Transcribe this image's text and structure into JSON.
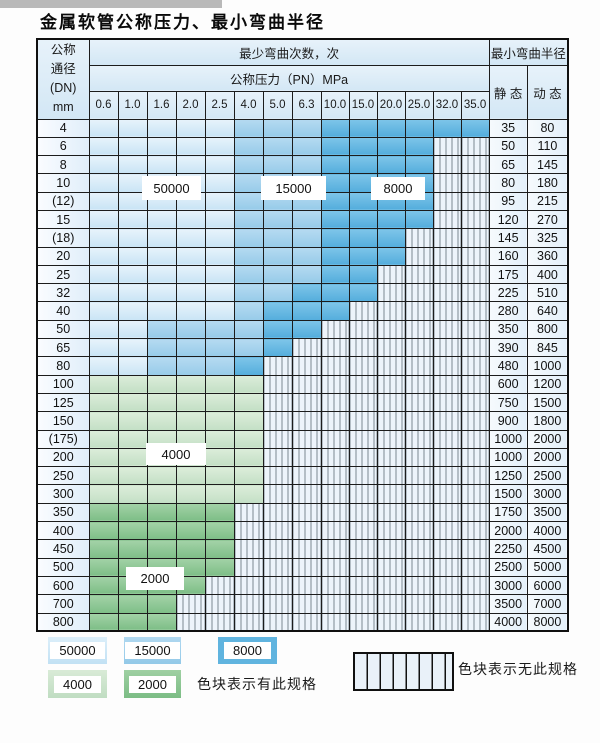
{
  "page": {
    "title": "金属软管公称压力、最小弯曲半径"
  },
  "table": {
    "header": {
      "dn_lines": [
        "公称",
        "通径",
        "(DN)",
        "mm"
      ],
      "bend_cycles": "最少弯曲次数，次",
      "pressure": "公称压力（PN）MPa",
      "pressure_columns": [
        "0.6",
        "1.0",
        "1.6",
        "2.0",
        "2.5",
        "4.0",
        "5.0",
        "6.3",
        "10.0",
        "15.0",
        "20.0",
        "25.0",
        "32.0",
        "35.0"
      ],
      "bend_radius": "最小弯曲半径",
      "static": "静 态",
      "dynamic": "动 态"
    },
    "shade_legend": {
      "1": "50000",
      "2": "15000",
      "3": "8000",
      "4": "4000",
      "5": "2000",
      ".": "no-spec-hatched"
    },
    "rows": [
      {
        "dn": "4",
        "spec": "11111222333333",
        "static": "35",
        "dynamic": "80"
      },
      {
        "dn": "6",
        "spec": "111112223333..",
        "static": "50",
        "dynamic": "110"
      },
      {
        "dn": "8",
        "spec": "111112223333..",
        "static": "65",
        "dynamic": "145"
      },
      {
        "dn": "10",
        "spec": "111112223333..",
        "static": "80",
        "dynamic": "180"
      },
      {
        "dn": "(12)",
        "spec": "111112223333..",
        "static": "95",
        "dynamic": "215"
      },
      {
        "dn": "15",
        "spec": "111112223333..",
        "static": "120",
        "dynamic": "270"
      },
      {
        "dn": "(18)",
        "spec": "11111222333...",
        "static": "145",
        "dynamic": "325"
      },
      {
        "dn": "20",
        "spec": "11111222333...",
        "static": "160",
        "dynamic": "360"
      },
      {
        "dn": "25",
        "spec": "1111122233....",
        "static": "175",
        "dynamic": "400"
      },
      {
        "dn": "32",
        "spec": "1111122333....",
        "static": "225",
        "dynamic": "510"
      },
      {
        "dn": "40",
        "spec": "111112333.....",
        "static": "280",
        "dynamic": "640"
      },
      {
        "dn": "50",
        "spec": "11222233......",
        "static": "350",
        "dynamic": "800"
      },
      {
        "dn": "65",
        "spec": "1122223.......",
        "static": "390",
        "dynamic": "845"
      },
      {
        "dn": "80",
        "spec": "112223........",
        "static": "480",
        "dynamic": "1000"
      },
      {
        "dn": "100",
        "spec": "444444........",
        "static": "600",
        "dynamic": "1200"
      },
      {
        "dn": "125",
        "spec": "444444........",
        "static": "750",
        "dynamic": "1500"
      },
      {
        "dn": "150",
        "spec": "444444........",
        "static": "900",
        "dynamic": "1800"
      },
      {
        "dn": "(175)",
        "spec": "444444........",
        "static": "1000",
        "dynamic": "2000"
      },
      {
        "dn": "200",
        "spec": "444444........",
        "static": "1000",
        "dynamic": "2000"
      },
      {
        "dn": "250",
        "spec": "444444........",
        "static": "1250",
        "dynamic": "2500"
      },
      {
        "dn": "300",
        "spec": "444444........",
        "static": "1500",
        "dynamic": "3000"
      },
      {
        "dn": "350",
        "spec": "55555.........",
        "static": "1750",
        "dynamic": "3500"
      },
      {
        "dn": "400",
        "spec": "55555.........",
        "static": "2000",
        "dynamic": "4000"
      },
      {
        "dn": "450",
        "spec": "55555.........",
        "static": "2250",
        "dynamic": "4500"
      },
      {
        "dn": "500",
        "spec": "55555.........",
        "static": "2500",
        "dynamic": "5000"
      },
      {
        "dn": "600",
        "spec": "5555..........",
        "static": "3000",
        "dynamic": "6000"
      },
      {
        "dn": "700",
        "spec": "555...........",
        "static": "3500",
        "dynamic": "7000"
      },
      {
        "dn": "800",
        "spec": "555...........",
        "static": "4000",
        "dynamic": "8000"
      }
    ],
    "region_labels": [
      {
        "text": "50000"
      },
      {
        "text": "15000"
      },
      {
        "text": "8000"
      },
      {
        "text": "4000"
      },
      {
        "text": "2000"
      }
    ]
  },
  "legend": {
    "swatches": [
      {
        "label": "50000"
      },
      {
        "label": "15000"
      },
      {
        "label": "8000"
      },
      {
        "label": "4000"
      },
      {
        "label": "2000"
      }
    ],
    "has_spec_text": "色块表示有此规格",
    "no_spec_text": "色块表示无此规格"
  },
  "colors": {
    "blue_50000": "#cde6f6",
    "blue_15000": "#a3d2ee",
    "blue_8000": "#62b5e0",
    "green_4000": "#cde4cd",
    "green_2000": "#8fc794",
    "hatch_bg": "#edf4fb",
    "grid": "#1c1c1c",
    "artifact_gray": "#b9b9b9"
  }
}
